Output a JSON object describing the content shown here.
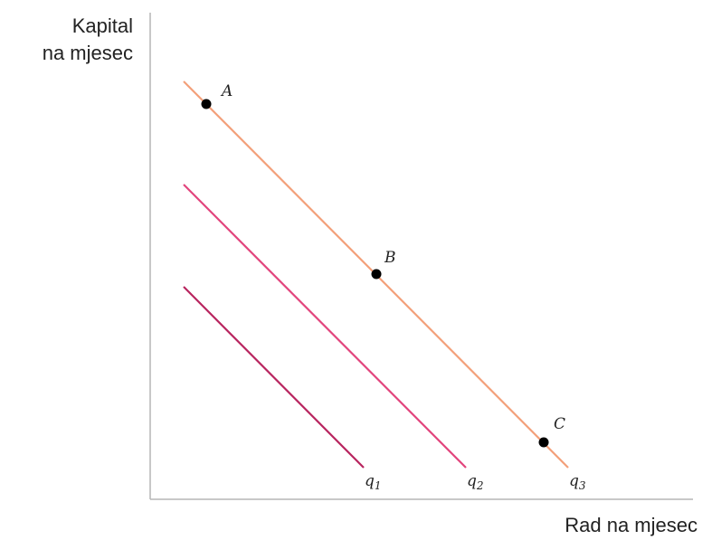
{
  "axes": {
    "y_label_line1": "Kapital",
    "y_label_line2": "na mjesec",
    "x_label": "Rad na mjesec"
  },
  "isoquants": [
    {
      "name": "q",
      "sub": "1",
      "color": "#b8255f"
    },
    {
      "name": "q",
      "sub": "2",
      "color": "#e2457d"
    },
    {
      "name": "q",
      "sub": "3",
      "color": "#f3a07a"
    }
  ],
  "points": [
    {
      "label": "A"
    },
    {
      "label": "B"
    },
    {
      "label": "C"
    }
  ],
  "colors": {
    "axis": "#b5b5b5",
    "point": "#000000",
    "text": "#222222"
  }
}
